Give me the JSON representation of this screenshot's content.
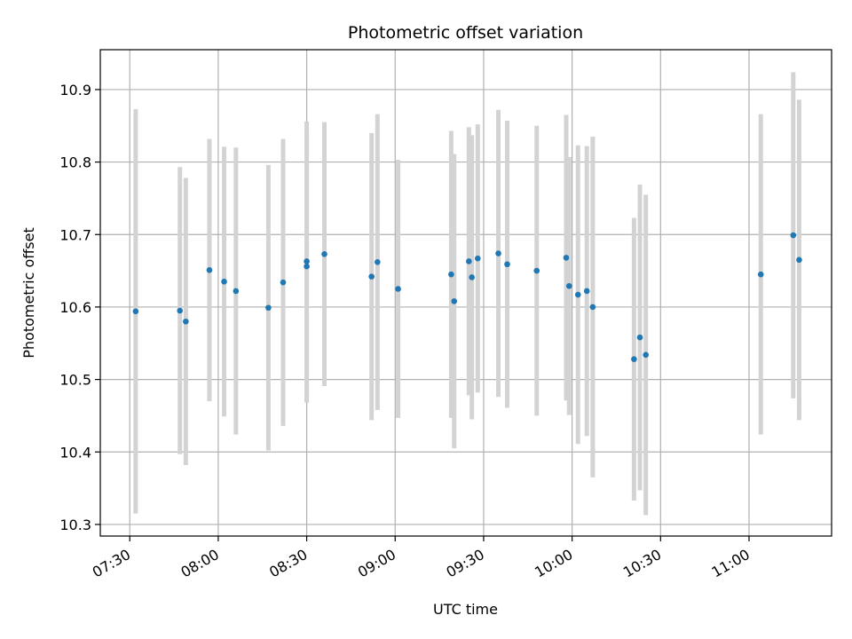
{
  "chart_data": {
    "type": "scatter",
    "title": "Photometric offset variation",
    "xlabel": "UTC time",
    "ylabel": "Photometric offset",
    "x_ticks": [
      "07:30",
      "08:00",
      "08:30",
      "09:00",
      "09:30",
      "10:00",
      "10:30",
      "11:00"
    ],
    "y_ticks": [
      "10.3",
      "10.4",
      "10.5",
      "10.6",
      "10.7",
      "10.8",
      "10.9"
    ],
    "xlim": [
      "07:20",
      "11:28"
    ],
    "ylim": [
      10.284,
      10.955
    ],
    "grid": true,
    "point_color": "#1f77b4",
    "errorbar_color": "#d3d3d3",
    "points": [
      {
        "x": "07:32",
        "y": 10.594,
        "err": 0.279
      },
      {
        "x": "07:47",
        "y": 10.595,
        "err": 0.198
      },
      {
        "x": "07:49",
        "y": 10.58,
        "err": 0.198
      },
      {
        "x": "07:57",
        "y": 10.651,
        "err": 0.181
      },
      {
        "x": "08:02",
        "y": 10.635,
        "err": 0.186
      },
      {
        "x": "08:06",
        "y": 10.622,
        "err": 0.198
      },
      {
        "x": "08:17",
        "y": 10.599,
        "err": 0.197
      },
      {
        "x": "08:22",
        "y": 10.634,
        "err": 0.198
      },
      {
        "x": "08:30",
        "y": 10.663,
        "err": 0.193
      },
      {
        "x": "08:30",
        "y": 10.656,
        "err": 0.188
      },
      {
        "x": "08:36",
        "y": 10.673,
        "err": 0.182
      },
      {
        "x": "08:52",
        "y": 10.642,
        "err": 0.198
      },
      {
        "x": "08:54",
        "y": 10.662,
        "err": 0.204
      },
      {
        "x": "09:01",
        "y": 10.625,
        "err": 0.178
      },
      {
        "x": "09:19",
        "y": 10.645,
        "err": 0.198
      },
      {
        "x": "09:20",
        "y": 10.608,
        "err": 0.203
      },
      {
        "x": "09:25",
        "y": 10.663,
        "err": 0.185
      },
      {
        "x": "09:26",
        "y": 10.641,
        "err": 0.196
      },
      {
        "x": "09:28",
        "y": 10.667,
        "err": 0.185
      },
      {
        "x": "09:35",
        "y": 10.674,
        "err": 0.198
      },
      {
        "x": "09:38",
        "y": 10.659,
        "err": 0.198
      },
      {
        "x": "09:48",
        "y": 10.65,
        "err": 0.2
      },
      {
        "x": "09:58",
        "y": 10.668,
        "err": 0.197
      },
      {
        "x": "09:59",
        "y": 10.629,
        "err": 0.178
      },
      {
        "x": "10:02",
        "y": 10.617,
        "err": 0.206
      },
      {
        "x": "10:05",
        "y": 10.622,
        "err": 0.2
      },
      {
        "x": "10:07",
        "y": 10.6,
        "err": 0.235
      },
      {
        "x": "10:21",
        "y": 10.528,
        "err": 0.195
      },
      {
        "x": "10:23",
        "y": 10.558,
        "err": 0.211
      },
      {
        "x": "10:25",
        "y": 10.534,
        "err": 0.221
      },
      {
        "x": "11:04",
        "y": 10.645,
        "err": 0.221
      },
      {
        "x": "11:15",
        "y": 10.699,
        "err": 0.225
      },
      {
        "x": "11:17",
        "y": 10.665,
        "err": 0.221
      }
    ]
  }
}
